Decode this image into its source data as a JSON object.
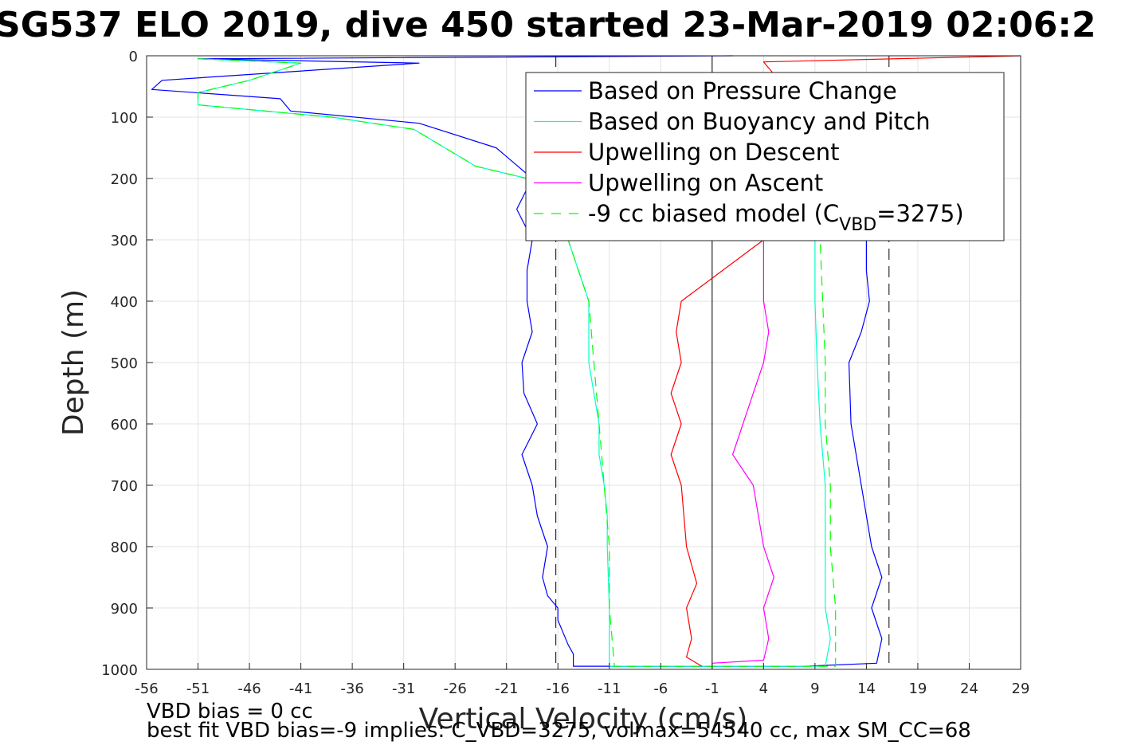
{
  "chart_data": {
    "type": "line",
    "title": "SG537 ELO 2019, dive 450 started 23-Mar-2019 02:06:2",
    "xlabel": "Vertical Velocity (cm/s)",
    "ylabel": "Depth (m)",
    "xlim": [
      -56,
      29
    ],
    "ylim": [
      0,
      1000
    ],
    "y_reversed": true,
    "grid": true,
    "xticks": [
      -56,
      -51,
      -46,
      -41,
      -36,
      -31,
      -26,
      -21,
      -16,
      -11,
      -6,
      -1,
      4,
      9,
      14,
      19,
      24,
      29
    ],
    "yticks": [
      0,
      100,
      200,
      300,
      400,
      500,
      600,
      700,
      800,
      900,
      1000
    ],
    "legend_position": "top-right",
    "legend": [
      {
        "label": "Based on Pressure Change",
        "color": "#0000ff",
        "dash": "solid"
      },
      {
        "label": "Based on Buoyancy and Pitch",
        "color": "#00ffcc",
        "dash": "solid"
      },
      {
        "label": "Upwelling on Descent",
        "color": "#ff0000",
        "dash": "solid"
      },
      {
        "label": "Upwelling on Ascent",
        "color": "#ff00ff",
        "dash": "solid"
      },
      {
        "label_prefix": "-9 cc biased model (C",
        "label_sub": "VBD",
        "label_suffix": "=3275)",
        "color": "#00ff00",
        "dash": "dashed"
      }
    ],
    "reference_lines": [
      {
        "kind": "vertical",
        "x": -1,
        "color": "#000000",
        "dash": "solid"
      },
      {
        "kind": "vertical",
        "x": -16.2,
        "color": "#000000",
        "dash": "dashed"
      },
      {
        "kind": "vertical",
        "x": 16.2,
        "color": "#000000",
        "dash": "dashed"
      }
    ],
    "series": [
      {
        "name": "Based on Pressure Change",
        "color": "#0000ff",
        "dash": "solid",
        "x": [
          1,
          -51,
          -29.5,
          -54.5,
          -55.5,
          -43,
          -42,
          -29.5,
          -22,
          -18.5,
          -20,
          -18.5,
          -19,
          -19,
          -18.5,
          -19.5,
          -19.3,
          -18,
          -19.5,
          -18.5,
          -18,
          -17,
          -17.5,
          -17,
          -16,
          -16,
          -15.5,
          -15,
          -14.5,
          -14.5,
          -14.5,
          -14.5,
          8,
          15,
          15.5,
          14.5,
          15.5,
          14.5,
          13.5,
          12.5,
          12.3,
          13.5,
          14.3,
          14,
          14,
          14.5,
          14.8,
          15,
          15,
          15
        ],
        "y": [
          0,
          5,
          12,
          40,
          55,
          70,
          90,
          110,
          150,
          200,
          250,
          300,
          350,
          400,
          450,
          500,
          550,
          600,
          650,
          700,
          750,
          800,
          850,
          880,
          900,
          920,
          940,
          960,
          975,
          990,
          995,
          995,
          995,
          990,
          950,
          900,
          850,
          800,
          700,
          600,
          500,
          450,
          400,
          350,
          300,
          250,
          200,
          150,
          100,
          50
        ]
      },
      {
        "name": "Based on Buoyancy and Pitch",
        "color": "#00ffcc",
        "dash": "solid",
        "x": [
          -51,
          -41,
          -46,
          -51,
          -51,
          -38,
          -30,
          -27,
          -24,
          -19,
          -16,
          -15,
          -14,
          -13,
          -13,
          -12.5,
          -12,
          -12,
          -11.5,
          -11.2,
          -11.2,
          -11,
          -11,
          -11,
          10,
          10.5,
          10,
          10,
          10,
          9.5,
          9.2,
          9,
          9,
          9
        ],
        "y": [
          5,
          12,
          40,
          60,
          80,
          100,
          120,
          150,
          180,
          200,
          250,
          300,
          350,
          400,
          500,
          550,
          600,
          650,
          700,
          750,
          800,
          900,
          950,
          995,
          995,
          950,
          900,
          800,
          700,
          600,
          500,
          400,
          350,
          300
        ]
      },
      {
        "name": "Upwelling on Descent",
        "color": "#ff0000",
        "dash": "solid",
        "x": [
          29,
          4,
          5,
          4,
          4,
          -4,
          -4.5,
          -4,
          -5,
          -4,
          -5,
          -4,
          -3.5,
          -2.5,
          -3.5,
          -3,
          -3.5,
          -2
        ],
        "y": [
          0,
          10,
          30,
          200,
          300,
          400,
          450,
          500,
          550,
          600,
          650,
          700,
          800,
          860,
          900,
          950,
          980,
          995
        ]
      },
      {
        "name": "Upwelling on Ascent",
        "color": "#ff00ff",
        "dash": "solid",
        "x": [
          -1,
          4,
          4.5,
          4,
          5,
          4,
          3,
          1,
          2,
          3,
          4,
          4.5,
          4,
          4,
          4,
          4,
          4,
          4,
          3,
          2
        ],
        "y": [
          990,
          985,
          950,
          900,
          850,
          800,
          700,
          650,
          600,
          550,
          500,
          450,
          400,
          350,
          300,
          250,
          200,
          150,
          100,
          50
        ]
      },
      {
        "name": "-9 cc biased model (C_VBD=3275)",
        "color": "#00ff00",
        "dash": "dashed",
        "x": [
          -51,
          -41,
          -46,
          -51,
          -51,
          -38,
          -30,
          -27,
          -24,
          -19,
          -16,
          -15,
          -14,
          -13,
          -12.5,
          -12,
          -11.5,
          -11,
          -11,
          -10.5,
          11,
          11,
          10.5,
          10.5,
          10,
          10,
          9.5
        ],
        "y": [
          5,
          12,
          40,
          60,
          80,
          100,
          120,
          150,
          180,
          200,
          250,
          300,
          350,
          400,
          500,
          600,
          700,
          800,
          900,
          995,
          995,
          900,
          800,
          700,
          600,
          500,
          300
        ]
      }
    ]
  },
  "footer": {
    "line1": "VBD bias = 0 cc",
    "line2": "best fit VBD bias=-9 implies: C_VBD=3275, volmax=54540 cc, max SM_CC=68"
  }
}
